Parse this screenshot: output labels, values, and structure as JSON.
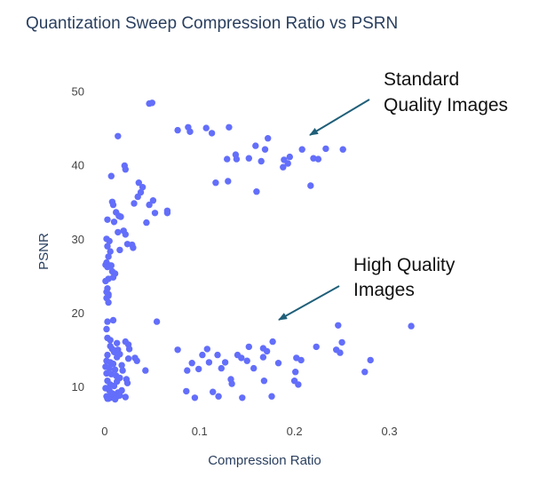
{
  "colors": {
    "marker": "#636efa",
    "arrow": "#1f5f79",
    "text": "#2a3f5f"
  },
  "chart_data": {
    "type": "scatter",
    "title": "Quantization Sweep Compression Ratio vs PSRN",
    "xlabel": "Compression Ratio",
    "ylabel": "PSNR",
    "xlim": [
      -0.012,
      0.35
    ],
    "ylim": [
      7.5,
      51
    ],
    "xticks": [
      0,
      0.1,
      0.2,
      0.3
    ],
    "xtick_labels": [
      "0",
      "0.1",
      "0.2",
      "0.3"
    ],
    "yticks": [
      10,
      20,
      30,
      40,
      50
    ],
    "ytick_labels": [
      "10",
      "20",
      "30",
      "40",
      "50"
    ],
    "grid": false,
    "annotations": [
      {
        "lines": [
          "Standard",
          "Quality Images"
        ],
        "points_to": [
          0.2,
          43.8
        ]
      },
      {
        "lines": [
          "High Quality",
          "Images"
        ],
        "points_to": [
          0.175,
          18.6
        ]
      }
    ],
    "points": [
      [
        0.047,
        48.4
      ],
      [
        0.05,
        48.5
      ],
      [
        0.014,
        44
      ],
      [
        0.077,
        44.8
      ],
      [
        0.088,
        45.2
      ],
      [
        0.09,
        44.6
      ],
      [
        0.107,
        45.1
      ],
      [
        0.113,
        44.4
      ],
      [
        0.131,
        45.2
      ],
      [
        0.172,
        43.7
      ],
      [
        0.159,
        42.7
      ],
      [
        0.169,
        42.2
      ],
      [
        0.208,
        42.2
      ],
      [
        0.233,
        42.3
      ],
      [
        0.251,
        42.2
      ],
      [
        0.129,
        40.9
      ],
      [
        0.138,
        41.5
      ],
      [
        0.139,
        40.9
      ],
      [
        0.152,
        41
      ],
      [
        0.165,
        40.6
      ],
      [
        0.189,
        40.8
      ],
      [
        0.195,
        41.2
      ],
      [
        0.193,
        40.3
      ],
      [
        0.188,
        39.8
      ],
      [
        0.22,
        41
      ],
      [
        0.225,
        40.9
      ],
      [
        0.217,
        37.3
      ],
      [
        0.021,
        40
      ],
      [
        0.022,
        39.5
      ],
      [
        0.117,
        37.7
      ],
      [
        0.13,
        37.9
      ],
      [
        0.16,
        36.5
      ],
      [
        0.036,
        37.7
      ],
      [
        0.04,
        37.1
      ],
      [
        0.038,
        36.4
      ],
      [
        0.035,
        35.8
      ],
      [
        0.051,
        35.3
      ],
      [
        0.047,
        34.7
      ],
      [
        0.053,
        33.6
      ],
      [
        0.066,
        33.6
      ],
      [
        0.066,
        33.9
      ],
      [
        0.031,
        34.9
      ],
      [
        0.007,
        38.6
      ],
      [
        0.008,
        35.1
      ],
      [
        0.009,
        34.7
      ],
      [
        0.012,
        33.7
      ],
      [
        0.015,
        33.2
      ],
      [
        0.017,
        33.1
      ],
      [
        0.01,
        32.4
      ],
      [
        0.003,
        32.7
      ],
      [
        0.02,
        31.2
      ],
      [
        0.022,
        30.7
      ],
      [
        0.014,
        31
      ],
      [
        0.044,
        32.3
      ],
      [
        0.024,
        29.4
      ],
      [
        0.029,
        29.3
      ],
      [
        0.03,
        28.9
      ],
      [
        0.016,
        28.6
      ],
      [
        0.002,
        30.1
      ],
      [
        0.005,
        29.8
      ],
      [
        0.003,
        29.1
      ],
      [
        0.006,
        28.4
      ],
      [
        0.004,
        27.7
      ],
      [
        0.002,
        26.9
      ],
      [
        0.001,
        26.6
      ],
      [
        0.003,
        26.3
      ],
      [
        0.006,
        26.5
      ],
      [
        0.007,
        26.5
      ],
      [
        0.008,
        25.7
      ],
      [
        0.011,
        25.4
      ],
      [
        0.009,
        24.9
      ],
      [
        0.001,
        24.4
      ],
      [
        0.004,
        24.7
      ],
      [
        0.003,
        23.4
      ],
      [
        0.002,
        22.9
      ],
      [
        0.004,
        22.4
      ],
      [
        0.002,
        22.1
      ],
      [
        0.004,
        22.6
      ],
      [
        0.004,
        21.5
      ],
      [
        0.009,
        19.1
      ],
      [
        0.055,
        18.9
      ],
      [
        0.003,
        18.9
      ],
      [
        0.246,
        18.4
      ],
      [
        0.323,
        18.3
      ],
      [
        0.002,
        17.9
      ],
      [
        0.003,
        16.7
      ],
      [
        0.006,
        16.4
      ],
      [
        0.013,
        16
      ],
      [
        0.022,
        16.2
      ],
      [
        0.025,
        15.8
      ],
      [
        0.177,
        16.2
      ],
      [
        0.25,
        16.1
      ],
      [
        0.223,
        15.5
      ],
      [
        0.152,
        15.5
      ],
      [
        0.167,
        15.3
      ],
      [
        0.006,
        15.6
      ],
      [
        0.008,
        15.2
      ],
      [
        0.014,
        15.1
      ],
      [
        0.026,
        15.2
      ],
      [
        0.077,
        15.1
      ],
      [
        0.108,
        15.2
      ],
      [
        0.244,
        15.1
      ],
      [
        0.171,
        14.9
      ],
      [
        0.01,
        14.8
      ],
      [
        0.016,
        14.5
      ],
      [
        0.103,
        14.4
      ],
      [
        0.119,
        14.4
      ],
      [
        0.14,
        14.4
      ],
      [
        0.144,
        14
      ],
      [
        0.167,
        14.1
      ],
      [
        0.202,
        14
      ],
      [
        0.248,
        14.7
      ],
      [
        0.003,
        14.4
      ],
      [
        0.013,
        14.1
      ],
      [
        0.025,
        13.9
      ],
      [
        0.032,
        14
      ],
      [
        0.034,
        13.6
      ],
      [
        0.002,
        13.6
      ],
      [
        0.006,
        13.4
      ],
      [
        0.009,
        13.2
      ],
      [
        0.018,
        13
      ],
      [
        0.092,
        13.3
      ],
      [
        0.11,
        13.4
      ],
      [
        0.127,
        13.4
      ],
      [
        0.15,
        13.6
      ],
      [
        0.183,
        13.3
      ],
      [
        0.28,
        13.7
      ],
      [
        0.207,
        13.7
      ],
      [
        0.001,
        12.8
      ],
      [
        0.005,
        12.6
      ],
      [
        0.011,
        12.4
      ],
      [
        0.019,
        12.3
      ],
      [
        0.043,
        12.3
      ],
      [
        0.087,
        12.3
      ],
      [
        0.099,
        12.5
      ],
      [
        0.123,
        12.6
      ],
      [
        0.157,
        12.6
      ],
      [
        0.201,
        12.1
      ],
      [
        0.274,
        12.1
      ],
      [
        0.002,
        11.9
      ],
      [
        0.007,
        11.8
      ],
      [
        0.012,
        11.6
      ],
      [
        0.016,
        11.3
      ],
      [
        0.023,
        11.1
      ],
      [
        0.133,
        11.1
      ],
      [
        0.168,
        10.9
      ],
      [
        0.2,
        10.9
      ],
      [
        0.204,
        10.4
      ],
      [
        0.003,
        10.9
      ],
      [
        0.006,
        10.4
      ],
      [
        0.01,
        10.2
      ],
      [
        0.013,
        10.8
      ],
      [
        0.024,
        10.6
      ],
      [
        0.134,
        10.5
      ],
      [
        0.001,
        9.9
      ],
      [
        0.005,
        9.6
      ],
      [
        0.008,
        9.2
      ],
      [
        0.014,
        9.3
      ],
      [
        0.018,
        9.6
      ],
      [
        0.086,
        9.5
      ],
      [
        0.114,
        9.4
      ],
      [
        0.002,
        8.8
      ],
      [
        0.003,
        8.5
      ],
      [
        0.006,
        8.6
      ],
      [
        0.009,
        8.7
      ],
      [
        0.013,
        8.8
      ],
      [
        0.022,
        8.7
      ],
      [
        0.095,
        8.6
      ],
      [
        0.12,
        8.8
      ],
      [
        0.145,
        8.6
      ],
      [
        0.176,
        8.8
      ],
      [
        0.004,
        8.5
      ],
      [
        0.011,
        8.4
      ],
      [
        0.016,
        8.9
      ],
      [
        0.007,
        9.1
      ]
    ]
  }
}
